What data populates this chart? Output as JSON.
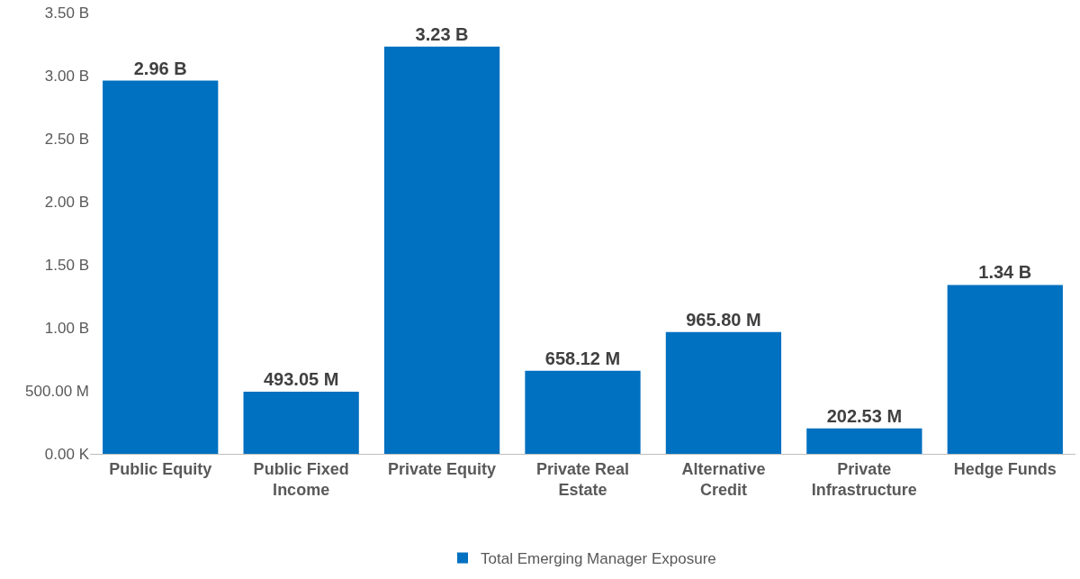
{
  "chart_data": {
    "type": "bar",
    "categories": [
      "Public Equity",
      "Public Fixed Income",
      "Private Equity",
      "Private Real Estate",
      "Alternative Credit",
      "Private Infrastructure",
      "Hedge Funds"
    ],
    "series": [
      {
        "name": "Total Emerging Manager Exposure",
        "color": "#0070c0",
        "values": [
          2960000000,
          493050000,
          3230000000,
          658120000,
          965800000,
          202530000,
          1340000000
        ],
        "value_labels": [
          "2.96 B",
          "493.05 M",
          "3.23 B",
          "658.12 M",
          "965.80 M",
          "202.53 M",
          "1.34 B"
        ]
      }
    ],
    "ylim": [
      0,
      3500000000
    ],
    "yticks": [
      {
        "value": 0,
        "label": "0.00 K"
      },
      {
        "value": 500000000,
        "label": "500.00 M"
      },
      {
        "value": 1000000000,
        "label": "1.00 B"
      },
      {
        "value": 1500000000,
        "label": "1.50 B"
      },
      {
        "value": 2000000000,
        "label": "2.00 B"
      },
      {
        "value": 2500000000,
        "label": "2.50 B"
      },
      {
        "value": 3000000000,
        "label": "3.00 B"
      },
      {
        "value": 3500000000,
        "label": "3.50 B"
      }
    ],
    "grid": false,
    "legend": "bottom"
  }
}
